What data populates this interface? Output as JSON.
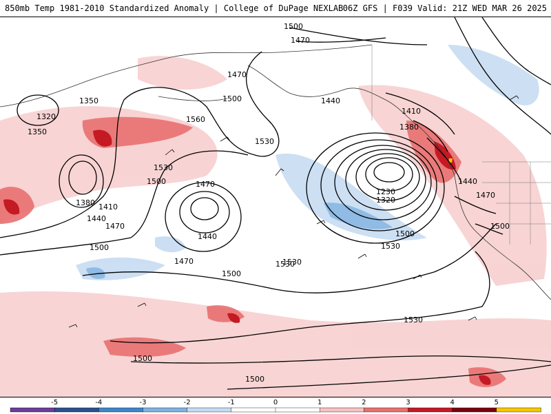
{
  "header": {
    "left_title": "850mb Temp 1981-2010 Standardized Anomaly | College of DuPage NEXLAB",
    "right_title": "06Z GFS | F039 Valid: 21Z WED MAR 26 2025"
  },
  "colorbar": {
    "tick_labels": [
      "-5",
      "-4",
      "-3",
      "-2",
      "-1",
      "0",
      "1",
      "2",
      "3",
      "4",
      "5"
    ],
    "colors": [
      "#6a3d9a",
      "#2c4f8c",
      "#3f86c8",
      "#7fb2e0",
      "#c6dbf2",
      "#ffffff",
      "#ffffff",
      "#f6c2c2",
      "#e87070",
      "#c41a24",
      "#7a0010",
      "#f7c600"
    ]
  },
  "map": {
    "contour_labels": [
      "1500",
      "1470",
      "1470",
      "1350",
      "1320",
      "1350",
      "1500",
      "1560",
      "1530",
      "1440",
      "1410",
      "1380",
      "1530",
      "1500",
      "1470",
      "1440",
      "1410",
      "1380",
      "1470",
      "1440",
      "1470",
      "1500",
      "1530",
      "1230",
      "1320",
      "1500",
      "1530",
      "1500",
      "1530",
      "1440",
      "1470",
      "1500",
      "1500",
      "1500",
      "1530"
    ]
  }
}
